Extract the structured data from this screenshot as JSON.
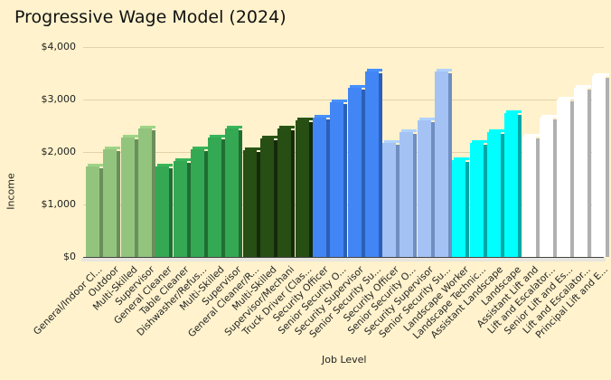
{
  "chart_data": {
    "type": "bar",
    "title": "Progressive Wage Model (2024)",
    "xlabel": "Job Level",
    "ylabel": "Income",
    "ylim": [
      0,
      4000
    ],
    "yticks": [
      "$0",
      "$1,000",
      "$2,000",
      "$3,000",
      "$4,000"
    ],
    "grid": true,
    "legend": "none",
    "categories": [
      "General/Indoor Cl...",
      "Outdoor",
      "Multi-Skilled",
      "Supervisor",
      "General Cleaner",
      "Table Cleaner",
      "Dishwasher/Refus...",
      "Multi-Skilled",
      "Supervisor",
      "General Cleaner/R...",
      "Multi-Skilled",
      "Supervisor/Mechani",
      "Truck Driver (Clas...",
      "Security Officer",
      "Senior Security O...",
      "Security Supervisor",
      "Senior Security Su...",
      "Security Officer",
      "Senior Security O...",
      "Security Supervisor",
      "Senior Security Su...",
      "Landscape Worker",
      "Landscape Technic...",
      "Assistant Landscape",
      "Landscape",
      "Assistant Lift and",
      "Lift and Escalator...",
      "Senior Lift and Es...",
      "Lift and Escalator...",
      "Principal Lift and E..."
    ],
    "values": [
      1720,
      2050,
      2270,
      2440,
      1720,
      1820,
      2050,
      2270,
      2440,
      2040,
      2260,
      2440,
      2610,
      2650,
      2950,
      3230,
      3530,
      2170,
      2380,
      2600,
      3530,
      1850,
      2175,
      2375,
      2750,
      2300,
      2660,
      3000,
      3220,
      3450
    ],
    "colors": [
      "#93c47d",
      "#93c47d",
      "#93c47d",
      "#93c47d",
      "#34a853",
      "#34a853",
      "#34a853",
      "#34a853",
      "#34a853",
      "#274e13",
      "#274e13",
      "#274e13",
      "#274e13",
      "#4285f4",
      "#4285f4",
      "#4285f4",
      "#4285f4",
      "#a4c2f4",
      "#a4c2f4",
      "#a4c2f4",
      "#a4c2f4",
      "#00ffff",
      "#00ffff",
      "#00ffff",
      "#00ffff",
      "#ffffff",
      "#ffffff",
      "#ffffff",
      "#ffffff",
      "#ffffff"
    ],
    "side_colors": [
      "#6b8f5a",
      "#6b8f5a",
      "#6b8f5a",
      "#6b8f5a",
      "#1f6e33",
      "#1f6e33",
      "#1f6e33",
      "#1f6e33",
      "#1f6e33",
      "#142a0a",
      "#142a0a",
      "#142a0a",
      "#142a0a",
      "#2b5fb8",
      "#2b5fb8",
      "#2b5fb8",
      "#2b5fb8",
      "#6f8fc2",
      "#6f8fc2",
      "#6f8fc2",
      "#6f8fc2",
      "#00a8a8",
      "#00a8a8",
      "#00a8a8",
      "#00a8a8",
      "#b0b0b0",
      "#b0b0b0",
      "#b0b0b0",
      "#b0b0b0",
      "#b0b0b0"
    ]
  },
  "background_color": "#fff2cc"
}
